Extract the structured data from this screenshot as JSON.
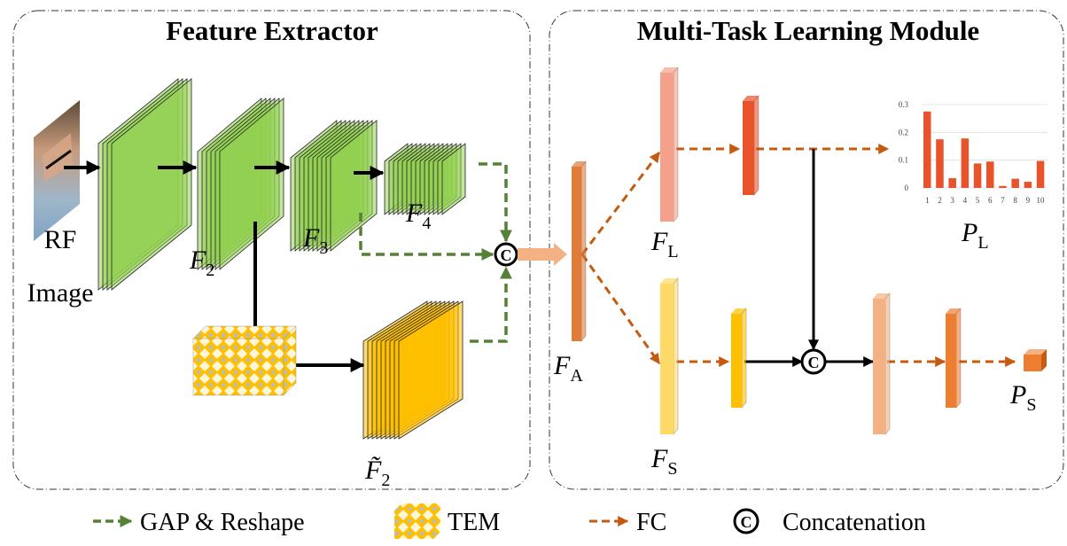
{
  "panels": {
    "left_title": "Feature Extractor",
    "right_title": "Multi-Task Learning Module"
  },
  "input": {
    "label_line1": "RF",
    "label_line2": "Image"
  },
  "labels": {
    "f2": {
      "base": "F",
      "sub": "2"
    },
    "f3": {
      "base": "F",
      "sub": "3"
    },
    "f4": {
      "base": "F",
      "sub": "4"
    },
    "f2_tem": {
      "base": "F̃",
      "sub": "2"
    },
    "fa": {
      "base": "F",
      "sub": "A"
    },
    "fl": {
      "base": "F",
      "sub": "L"
    },
    "fs": {
      "base": "F",
      "sub": "S"
    },
    "pl": {
      "base": "P",
      "sub": "L"
    },
    "ps": {
      "base": "P",
      "sub": "S"
    },
    "concat_symbol": "C"
  },
  "colors": {
    "green_layer": "#92D050",
    "green_dash": "#548235",
    "tem_yellow": "#FFC000",
    "fc_dash": "#C55A11",
    "fa_bar": "#E07B39",
    "fl_bar": "#F4A08A",
    "fs_bar": "#FFD966",
    "bar_red": "#E8532B"
  },
  "legend": [
    {
      "icon": "green-dashed-arrow",
      "label": "GAP & Reshape"
    },
    {
      "icon": "tem-block",
      "label": "TEM"
    },
    {
      "icon": "orange-dashed-arrow",
      "label": "FC"
    },
    {
      "icon": "concat-circle",
      "label": "Concatenation"
    }
  ],
  "chart_data": {
    "type": "bar",
    "categories": [
      "1",
      "2",
      "3",
      "4",
      "5",
      "6",
      "7",
      "8",
      "9",
      "10"
    ],
    "values": [
      0.275,
      0.175,
      0.035,
      0.178,
      0.088,
      0.095,
      0.007,
      0.033,
      0.022,
      0.097
    ],
    "ylim": [
      0,
      0.3
    ],
    "yticks": [
      "0",
      "0.1",
      "0.2",
      "0.3"
    ],
    "grid": true,
    "color": "#E8532B"
  }
}
